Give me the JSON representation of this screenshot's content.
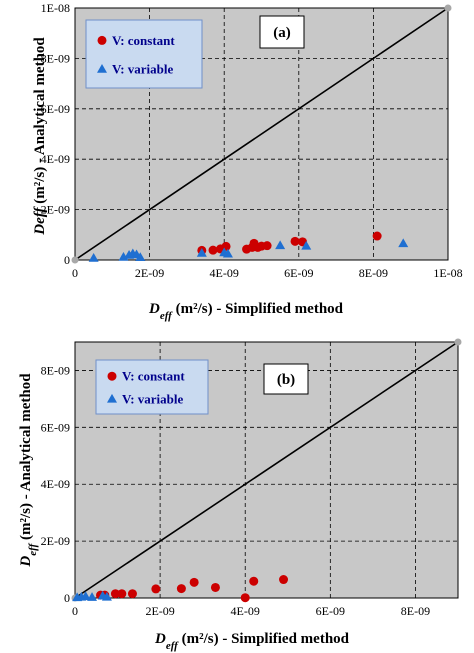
{
  "colors": {
    "plot_bg": "#c8c8c8",
    "legend_bg": "#c9daf0",
    "legend_border": "#6f8fc9",
    "constant": "#cc0000",
    "variable": "#1f6fd1",
    "legend_text": "#00008b"
  },
  "chart_data": [
    {
      "type": "scatter",
      "panel_label": "(a)",
      "xlabel": {
        "prefix": "D",
        "sub": "eff",
        "suffix": " (m²/s) - Simplified method"
      },
      "ylabel": {
        "prefix": "Deff",
        "sub": "",
        "suffix": " (m²/s) - Analytical method"
      },
      "xlim": [
        0,
        1e-08
      ],
      "ylim": [
        0,
        1e-08
      ],
      "xticks": [
        0,
        2e-09,
        4e-09,
        6e-09,
        8e-09,
        1e-08
      ],
      "yticks": [
        0,
        2e-09,
        4e-09,
        6e-09,
        8e-09,
        1e-08
      ],
      "xtick_labels": [
        "0",
        "2E-09",
        "4E-09",
        "6E-09",
        "8E-09",
        "1E-08"
      ],
      "ytick_labels": [
        "0",
        "2E-09",
        "4E-09",
        "6E-09",
        "8E-09",
        "1E-08"
      ],
      "grid": true,
      "legend_position": "top-left",
      "reference_line": {
        "from": [
          0,
          0
        ],
        "to": [
          1e-08,
          1e-08
        ]
      },
      "series": [
        {
          "name": "V: constant",
          "marker": "circle",
          "points": [
            [
              3.4e-09,
              3.8e-10
            ],
            [
              3.7e-09,
              3.9e-10
            ],
            [
              3.9e-09,
              4.4e-10
            ],
            [
              4.05e-09,
              5.4e-10
            ],
            [
              4.6e-09,
              4.3e-10
            ],
            [
              4.75e-09,
              5e-10
            ],
            [
              4.8e-09,
              6.6e-10
            ],
            [
              4.9e-09,
              5e-10
            ],
            [
              5e-09,
              5.5e-10
            ],
            [
              5.15e-09,
              5.7e-10
            ],
            [
              5.9e-09,
              7.4e-10
            ],
            [
              6.1e-09,
              7.2e-10
            ],
            [
              8.1e-09,
              9.5e-10
            ]
          ]
        },
        {
          "name": "V: variable",
          "marker": "triangle",
          "points": [
            [
              5e-10,
              8e-11
            ],
            [
              1.3e-09,
              1.2e-10
            ],
            [
              1.45e-09,
              2e-10
            ],
            [
              1.55e-09,
              2.6e-10
            ],
            [
              1.65e-09,
              2.2e-10
            ],
            [
              1.75e-09,
              1.1e-10
            ],
            [
              3.4e-09,
              2.8e-10
            ],
            [
              4e-09,
              3e-10
            ],
            [
              4.1e-09,
              2.5e-10
            ],
            [
              5.5e-09,
              5.8e-10
            ],
            [
              6.2e-09,
              5.6e-10
            ],
            [
              8.8e-09,
              6.6e-10
            ]
          ]
        }
      ]
    },
    {
      "type": "scatter",
      "panel_label": "(b)",
      "xlabel": {
        "prefix": "D",
        "sub": "eff",
        "suffix": " (m²/s) - Simplified method"
      },
      "ylabel": {
        "prefix": "D",
        "sub": "eff",
        "suffix": " (m²/s) - Analytical method"
      },
      "xlim": [
        0,
        9e-09
      ],
      "ylim": [
        0,
        9e-09
      ],
      "xticks": [
        0,
        2e-09,
        4e-09,
        6e-09,
        8e-09
      ],
      "yticks": [
        0,
        2e-09,
        4e-09,
        6e-09,
        8e-09
      ],
      "xtick_labels": [
        "0",
        "2E-09",
        "4E-09",
        "6E-09",
        "8E-09"
      ],
      "ytick_labels": [
        "0",
        "2E-09",
        "4E-09",
        "6E-09",
        "8E-09"
      ],
      "grid": true,
      "legend_position": "top-left",
      "reference_line": {
        "from": [
          0,
          0
        ],
        "to": [
          9e-09,
          9e-09
        ]
      },
      "series": [
        {
          "name": "V: constant",
          "marker": "circle",
          "points": [
            [
              6e-10,
              1e-10
            ],
            [
              7e-10,
              1e-10
            ],
            [
              9.5e-10,
              1.5e-10
            ],
            [
              1.1e-09,
              1.5e-10
            ],
            [
              1.35e-09,
              1.5e-10
            ],
            [
              1.9e-09,
              3.2e-10
            ],
            [
              2.5e-09,
              3.3e-10
            ],
            [
              2.8e-09,
              5.5e-10
            ],
            [
              3.3e-09,
              3.7e-10
            ],
            [
              4e-09,
              1e-11
            ],
            [
              4.2e-09,
              5.9e-10
            ],
            [
              4.9e-09,
              6.5e-10
            ]
          ]
        },
        {
          "name": "V: variable",
          "marker": "triangle",
          "points": [
            [
              5e-11,
              2e-11
            ],
            [
              1.5e-10,
              4e-11
            ],
            [
              2.5e-10,
              6e-11
            ],
            [
              4e-10,
              3e-11
            ],
            [
              6.5e-10,
              8e-11
            ],
            [
              7.5e-10,
              4e-11
            ]
          ]
        }
      ]
    }
  ]
}
